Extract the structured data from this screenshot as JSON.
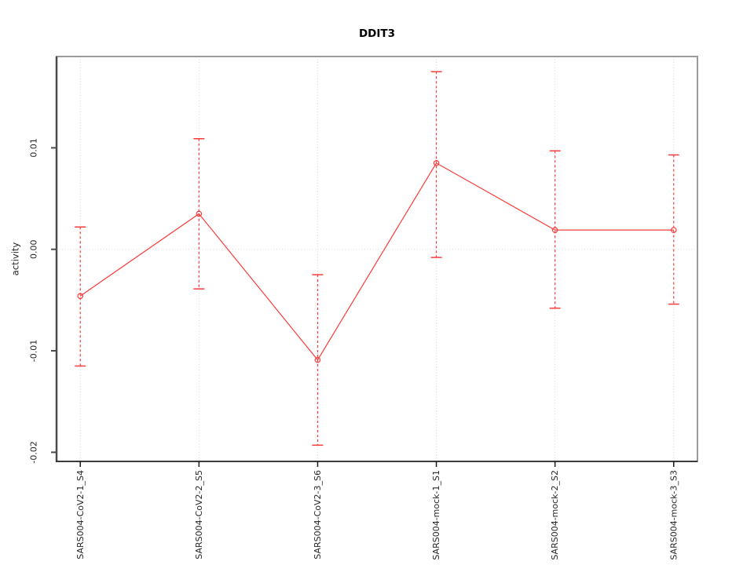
{
  "chart_data": {
    "type": "line",
    "title": "DDIT3",
    "xlabel": "",
    "ylabel": "activity",
    "categories": [
      "SARS004-CoV2-1_S4",
      "SARS004-CoV2-2_S5",
      "SARS004-CoV2-3_S6",
      "SARS004-mock-1_S1",
      "SARS004-mock-2_S2",
      "SARS004-mock-3_S3"
    ],
    "series": [
      {
        "name": "activity",
        "values": [
          -0.0046,
          0.0035,
          -0.0109,
          0.0085,
          0.0019,
          0.0019
        ],
        "error_upper": [
          0.0022,
          0.0109,
          -0.0025,
          0.0175,
          0.0097,
          0.0093
        ],
        "error_lower": [
          -0.0115,
          -0.0039,
          -0.0193,
          -0.0008,
          -0.0058,
          -0.0054
        ]
      }
    ],
    "yticks": [
      -0.02,
      -0.01,
      0,
      0.01
    ],
    "ytick_labels": [
      "-0.02",
      "-0.01",
      "0.00",
      "0.01"
    ],
    "ylim": [
      -0.0209,
      0.019
    ],
    "grid": {
      "vertical_dotted": true,
      "horizontal_zero_dotted": true
    },
    "legend": "none",
    "marker": "open-circle",
    "colors": {
      "series": "#fa3c3c",
      "grid": "#d6d6d6",
      "zero_line": "#ddd8d8",
      "border": "#9a9a9a",
      "axis": "#4a4a4a",
      "bottom_axis": "#1a1a1a",
      "text": "#262626",
      "title": "#000000",
      "background": "#ffffff"
    }
  }
}
